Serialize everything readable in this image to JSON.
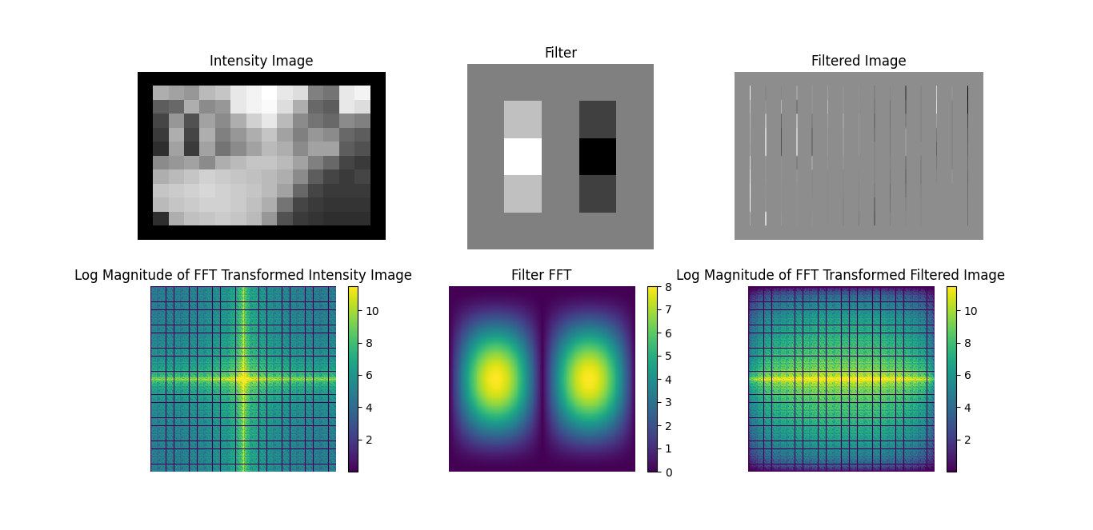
{
  "chart_data": [
    {
      "type": "image",
      "title": "Intensity Image",
      "cells": [
        [
          0,
          0,
          0,
          0,
          0,
          0,
          0,
          0,
          0,
          0,
          0,
          0,
          0,
          0,
          0,
          0
        ],
        [
          0,
          150,
          140,
          130,
          160,
          170,
          200,
          210,
          220,
          200,
          190,
          110,
          100,
          200,
          210,
          0
        ],
        [
          0,
          80,
          90,
          150,
          120,
          130,
          200,
          210,
          215,
          190,
          150,
          90,
          80,
          200,
          190,
          0
        ],
        [
          0,
          60,
          130,
          70,
          140,
          120,
          150,
          180,
          200,
          160,
          120,
          100,
          90,
          120,
          110,
          0
        ],
        [
          0,
          50,
          150,
          60,
          150,
          110,
          130,
          150,
          170,
          140,
          110,
          130,
          120,
          90,
          80,
          0
        ],
        [
          0,
          40,
          140,
          50,
          140,
          100,
          120,
          140,
          160,
          150,
          120,
          140,
          140,
          80,
          70,
          0
        ],
        [
          0,
          120,
          130,
          140,
          120,
          150,
          160,
          170,
          170,
          160,
          140,
          110,
          90,
          60,
          50,
          0
        ],
        [
          0,
          150,
          160,
          170,
          180,
          175,
          170,
          165,
          160,
          150,
          120,
          80,
          60,
          50,
          60,
          0
        ],
        [
          0,
          170,
          175,
          180,
          185,
          180,
          175,
          170,
          160,
          140,
          90,
          60,
          50,
          50,
          50,
          0
        ],
        [
          0,
          160,
          170,
          175,
          180,
          180,
          175,
          165,
          150,
          100,
          60,
          50,
          45,
          45,
          45,
          0
        ],
        [
          0,
          40,
          150,
          165,
          170,
          175,
          170,
          160,
          130,
          70,
          50,
          45,
          40,
          40,
          40,
          0
        ],
        [
          0,
          0,
          0,
          0,
          0,
          0,
          0,
          0,
          0,
          0,
          0,
          0,
          0,
          0,
          0,
          0
        ]
      ]
    },
    {
      "type": "kernel",
      "title": "Filter",
      "cells": [
        [
          0,
          0,
          0,
          0,
          0
        ],
        [
          0,
          1,
          0,
          -1,
          0
        ],
        [
          0,
          2,
          0,
          -2,
          0
        ],
        [
          0,
          1,
          0,
          -1,
          0
        ],
        [
          0,
          0,
          0,
          0,
          0
        ]
      ]
    },
    {
      "type": "filtered_image",
      "title": "Filtered Image"
    },
    {
      "type": "image_fft",
      "title": "Log Magnitude of FFT Transformed Intensity Image",
      "colorbar_lim": [
        0,
        11.5
      ],
      "colorbar_ticks": [
        2,
        4,
        6,
        8,
        10
      ]
    },
    {
      "type": "kernel_fft",
      "title": "Filter FFT",
      "colorbar_lim": [
        0,
        8
      ],
      "colorbar_ticks": [
        0,
        1,
        2,
        3,
        4,
        5,
        6,
        7,
        8
      ]
    },
    {
      "type": "filtered_fft",
      "title": "Log Magnitude of FFT Transformed Filtered Image",
      "colorbar_lim": [
        0,
        11.5
      ],
      "colorbar_ticks": [
        2,
        4,
        6,
        8,
        10
      ]
    }
  ]
}
